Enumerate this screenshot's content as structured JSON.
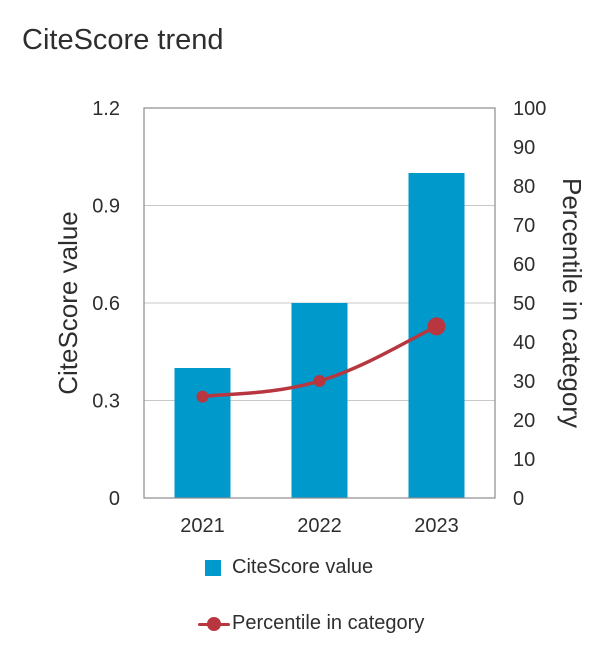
{
  "colors": {
    "bar": "#0099cc",
    "line": "#b8363f",
    "axis": "#8c8c8c",
    "grid": "#c8c8c8",
    "text": "#2e2e2e"
  },
  "chart_data": {
    "type": "bar+line",
    "title": "CiteScore trend",
    "categories": [
      "2021",
      "2022",
      "2023"
    ],
    "series": [
      {
        "name": "CiteScore value",
        "type": "bar",
        "axis": "left",
        "values": [
          0.4,
          0.6,
          1.0
        ]
      },
      {
        "name": "Percentile in category",
        "type": "line",
        "axis": "right",
        "values": [
          26,
          30,
          44
        ]
      }
    ],
    "ylabel": "CiteScore value",
    "ylim": [
      0,
      1.2
    ],
    "yticks": [
      "0",
      "0.3",
      "0.6",
      "0.9",
      "1.2"
    ],
    "y2label": "Percentile in category",
    "y2lim": [
      0,
      100
    ],
    "y2ticks": [
      "0",
      "10",
      "20",
      "30",
      "40",
      "50",
      "60",
      "70",
      "80",
      "90",
      "100"
    ],
    "grid": true,
    "legend": "bottom"
  }
}
